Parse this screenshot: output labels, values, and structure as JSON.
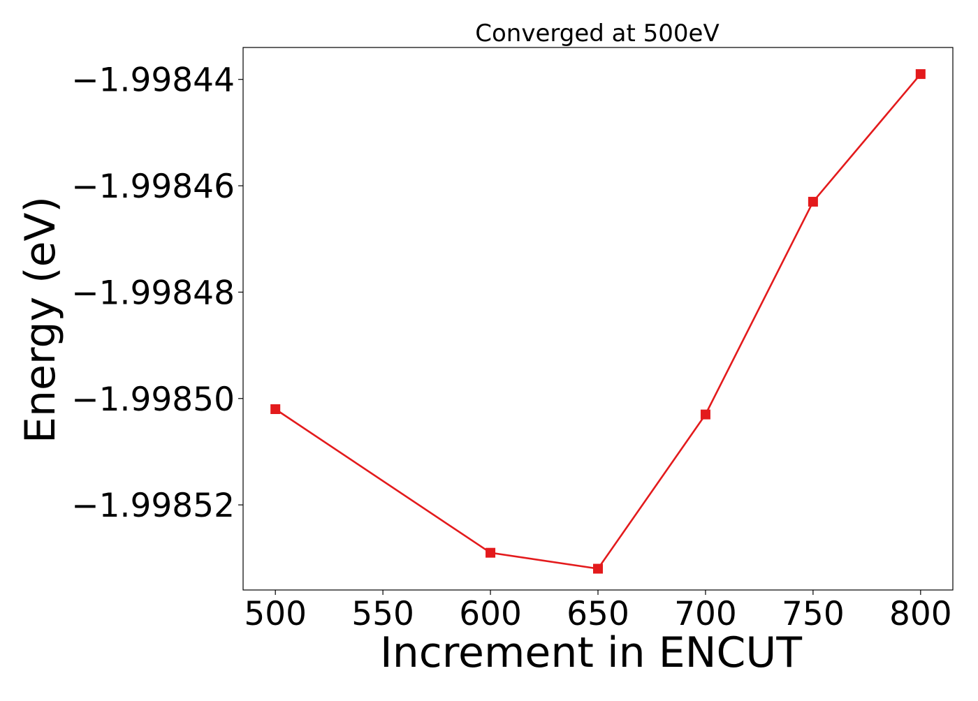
{
  "chart_data": {
    "type": "line",
    "title": "Converged at 500eV",
    "xlabel": "Increment in ENCUT",
    "ylabel": "Energy (eV)",
    "xlim": [
      485,
      815
    ],
    "ylim": [
      -1.998536,
      -1.998434
    ],
    "x_ticks": [
      500,
      550,
      600,
      650,
      700,
      750,
      800
    ],
    "x_tick_labels": [
      "500",
      "550",
      "600",
      "650",
      "700",
      "750",
      "800"
    ],
    "y_ticks": [
      -1.99844,
      -1.99846,
      -1.99848,
      -1.9985,
      -1.99852
    ],
    "y_tick_labels": [
      "−1.99844",
      "−1.99846",
      "−1.99848",
      "−1.99850",
      "−1.99852"
    ],
    "grid": false,
    "series": [
      {
        "color": "#e31a1c",
        "marker": "square",
        "x": [
          500,
          600,
          650,
          700,
          750,
          800
        ],
        "y": [
          -1.998502,
          -1.998529,
          -1.998532,
          -1.998503,
          -1.998463,
          -1.998439
        ]
      }
    ]
  }
}
